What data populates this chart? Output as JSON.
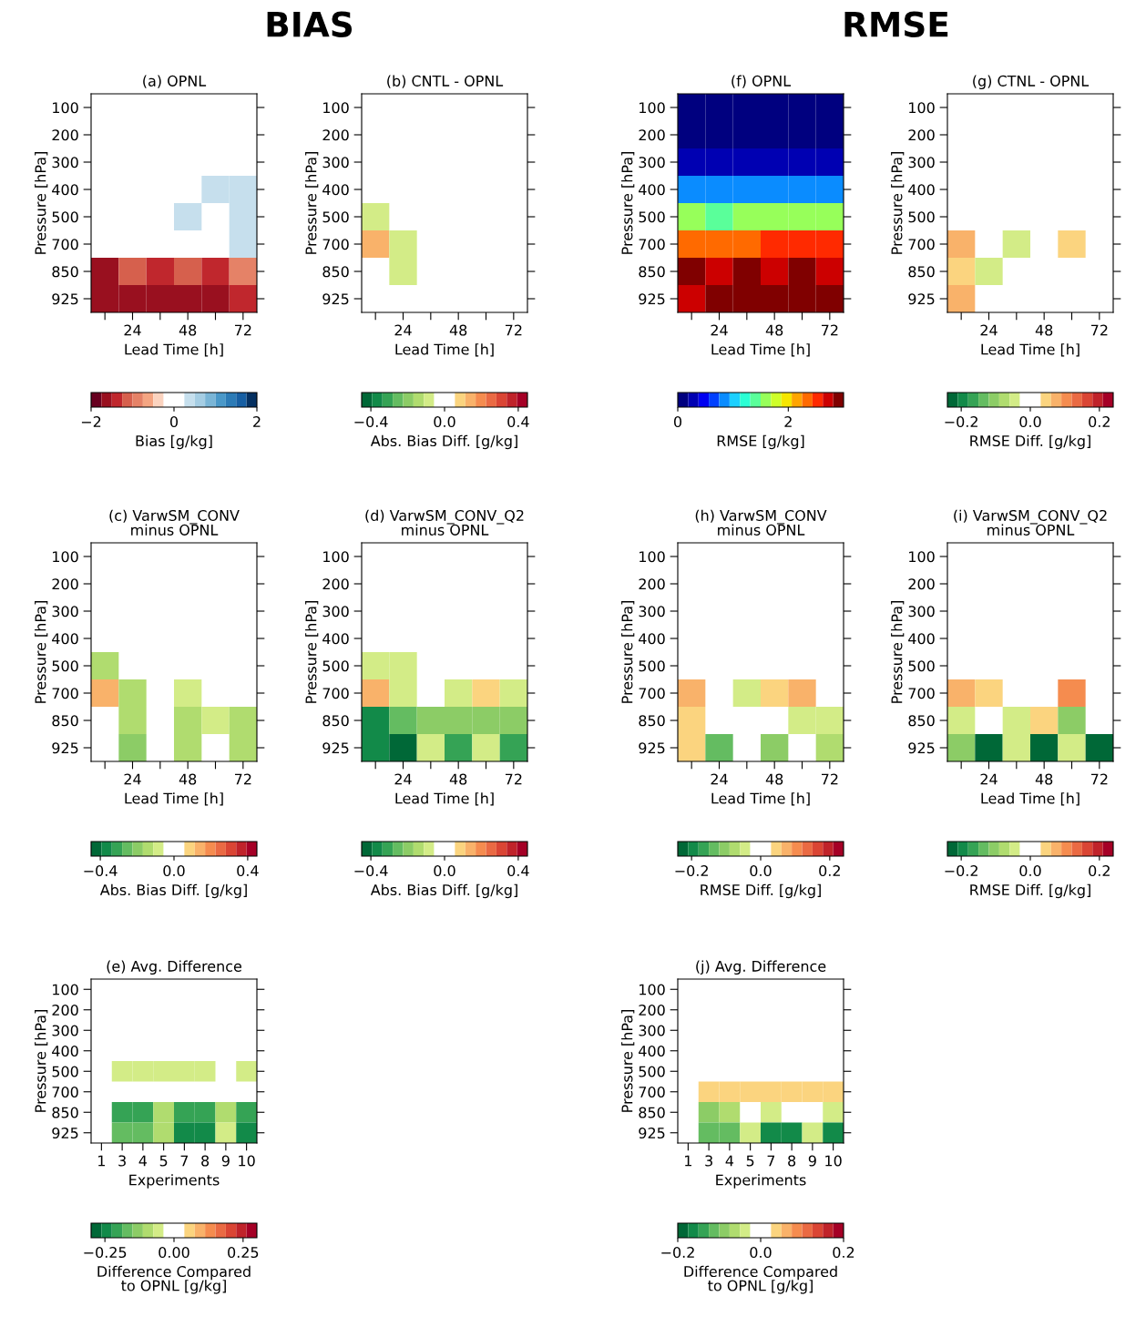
{
  "chart_data": [
    {
      "type": "heatmap",
      "title": "(a) OPNL",
      "annotations": [
        "BIAS"
      ],
      "xlabel": "Lead Time [h]",
      "ylabel": "Pressure [hPa]",
      "clabel": "Bias [g/kg]",
      "categories": [
        null,
        "24",
        null,
        "48",
        null,
        "72"
      ],
      "y_categories": [
        "100",
        "200",
        "300",
        "400",
        "500",
        "700",
        "850",
        "925"
      ],
      "clim": [
        -2,
        2
      ],
      "cticks": [
        {
          "value": -2,
          "label": "−2"
        },
        0,
        2
      ],
      "colors": [
        "#67001f",
        "#99101f",
        "#c0272d",
        "#d6604d",
        "#e58267",
        "#f4a582",
        "#fbd3bf",
        "#ffffff",
        "#ffffff",
        "#c6dfed",
        "#a5cde3",
        "#7ab5d6",
        "#4a98c8",
        "#2c7bb6",
        "#175fa3",
        "#053061"
      ],
      "cells": [
        [
          null,
          null,
          null,
          null,
          null,
          null
        ],
        [
          null,
          null,
          null,
          null,
          null,
          null
        ],
        [
          null,
          null,
          null,
          null,
          null,
          null
        ],
        [
          null,
          null,
          null,
          null,
          0.4,
          0.4
        ],
        [
          null,
          null,
          null,
          0.4,
          null,
          0.4
        ],
        [
          null,
          null,
          null,
          null,
          null,
          0.4
        ],
        [
          -1.6,
          -1.1,
          -1.4,
          -1.1,
          -1.4,
          -0.9
        ],
        [
          -1.6,
          -1.6,
          -1.6,
          -1.6,
          -1.6,
          -1.4
        ]
      ]
    },
    {
      "type": "heatmap",
      "title": "(b) CNTL - OPNL",
      "xlabel": "Lead Time [h]",
      "ylabel": "Pressure [hPa]",
      "clabel": "Abs. Bias Diff. [g/kg]",
      "categories": [
        null,
        "24",
        null,
        "48",
        null,
        "72"
      ],
      "y_categories": [
        "100",
        "200",
        "300",
        "400",
        "500",
        "700",
        "850",
        "925"
      ],
      "clim": [
        -0.45,
        0.45
      ],
      "cticks": [
        {
          "value": -0.4,
          "label": "−0.4"
        },
        {
          "value": 0,
          "label": "0.0"
        },
        0.4
      ],
      "colors": [
        "#006837",
        "#128a49",
        "#35a355",
        "#64bc61",
        "#8ccc66",
        "#b0dc6f",
        "#d3ec87",
        "#ffffff",
        "#ffffff",
        "#fbd47f",
        "#f9b26a",
        "#f58c4f",
        "#ea6a43",
        "#da4534",
        "#c0232a",
        "#a50026"
      ],
      "cells": [
        [
          null,
          null,
          null,
          null,
          null,
          null
        ],
        [
          null,
          null,
          null,
          null,
          null,
          null
        ],
        [
          null,
          null,
          null,
          null,
          null,
          null
        ],
        [
          null,
          null,
          null,
          null,
          null,
          null
        ],
        [
          -0.08,
          null,
          null,
          null,
          null,
          null
        ],
        [
          0.14,
          -0.08,
          null,
          null,
          null,
          null
        ],
        [
          null,
          -0.08,
          null,
          null,
          null,
          null
        ],
        [
          null,
          null,
          null,
          null,
          null,
          null
        ]
      ]
    },
    {
      "type": "heatmap",
      "title": "(f) OPNL",
      "annotations": [
        "RMSE"
      ],
      "xlabel": "Lead Time [h]",
      "ylabel": "Pressure [hPa]",
      "clabel": "RMSE [g/kg]",
      "categories": [
        null,
        "24",
        null,
        "48",
        null,
        "72"
      ],
      "y_categories": [
        "100",
        "200",
        "300",
        "400",
        "500",
        "700",
        "850",
        "925"
      ],
      "clim": [
        0,
        3
      ],
      "cticks": [
        0,
        2
      ],
      "colors": [
        "#00007f",
        "#0000b2",
        "#0000f1",
        "#0040ff",
        "#0a8cff",
        "#1cd0ff",
        "#2bffd4",
        "#5aff9a",
        "#97ff5a",
        "#ceff29",
        "#f5e600",
        "#ffa500",
        "#ff6a00",
        "#ff2a00",
        "#cc0000",
        "#800000"
      ],
      "cells": [
        [
          0.09,
          0.09,
          0.09,
          0.09,
          0.09,
          0.09
        ],
        [
          0.09,
          0.09,
          0.09,
          0.09,
          0.09,
          0.09
        ],
        [
          0.28,
          0.28,
          0.28,
          0.28,
          0.28,
          0.28
        ],
        [
          0.84,
          0.84,
          0.84,
          0.84,
          0.84,
          0.84
        ],
        [
          1.59,
          1.41,
          1.59,
          1.59,
          1.59,
          1.59
        ],
        [
          2.34,
          2.34,
          2.34,
          2.53,
          2.53,
          2.53
        ],
        [
          2.91,
          2.72,
          2.91,
          2.72,
          2.91,
          2.72
        ],
        [
          2.72,
          2.91,
          2.91,
          2.91,
          2.91,
          2.91
        ]
      ]
    },
    {
      "type": "heatmap",
      "title": "(g) CTNL - OPNL",
      "xlabel": "Lead Time [h]",
      "ylabel": "Pressure [hPa]",
      "clabel": "RMSE Diff. [g/kg]",
      "categories": [
        null,
        "24",
        null,
        "48",
        null,
        "72"
      ],
      "y_categories": [
        "100",
        "200",
        "300",
        "400",
        "500",
        "700",
        "850",
        "925"
      ],
      "clim": [
        -0.24,
        0.24
      ],
      "cticks": [
        {
          "value": -0.2,
          "label": "−0.2"
        },
        {
          "value": 0,
          "label": "0.0"
        },
        0.2
      ],
      "colors": [
        "#006837",
        "#128a49",
        "#35a355",
        "#64bc61",
        "#8ccc66",
        "#b0dc6f",
        "#d3ec87",
        "#ffffff",
        "#ffffff",
        "#fbd47f",
        "#f9b26a",
        "#f58c4f",
        "#ea6a43",
        "#da4534",
        "#c0232a",
        "#a50026"
      ],
      "cells": [
        [
          null,
          null,
          null,
          null,
          null,
          null
        ],
        [
          null,
          null,
          null,
          null,
          null,
          null
        ],
        [
          null,
          null,
          null,
          null,
          null,
          null
        ],
        [
          null,
          null,
          null,
          null,
          null,
          null
        ],
        [
          null,
          null,
          null,
          null,
          null,
          null
        ],
        [
          0.075,
          null,
          -0.045,
          null,
          0.045,
          null
        ],
        [
          0.045,
          -0.045,
          null,
          null,
          null,
          null
        ],
        [
          0.075,
          null,
          null,
          null,
          null,
          null
        ]
      ]
    },
    {
      "type": "heatmap",
      "title": "(c) VarwSM_CONV\nminus OPNL",
      "xlabel": "Lead Time [h]",
      "ylabel": "Pressure [hPa]",
      "clabel": "Abs. Bias Diff. [g/kg]",
      "categories": [
        null,
        "24",
        null,
        "48",
        null,
        "72"
      ],
      "y_categories": [
        "100",
        "200",
        "300",
        "400",
        "500",
        "700",
        "850",
        "925"
      ],
      "clim": [
        -0.45,
        0.45
      ],
      "cticks": [
        {
          "value": -0.4,
          "label": "−0.4"
        },
        {
          "value": 0,
          "label": "0.0"
        },
        0.4
      ],
      "colors": [
        "#006837",
        "#128a49",
        "#35a355",
        "#64bc61",
        "#8ccc66",
        "#b0dc6f",
        "#d3ec87",
        "#ffffff",
        "#ffffff",
        "#fbd47f",
        "#f9b26a",
        "#f58c4f",
        "#ea6a43",
        "#da4534",
        "#c0232a",
        "#a50026"
      ],
      "cells": [
        [
          null,
          null,
          null,
          null,
          null,
          null
        ],
        [
          null,
          null,
          null,
          null,
          null,
          null
        ],
        [
          null,
          null,
          null,
          null,
          null,
          null
        ],
        [
          null,
          null,
          null,
          null,
          null,
          null
        ],
        [
          -0.14,
          null,
          null,
          null,
          null,
          null
        ],
        [
          0.14,
          -0.14,
          null,
          -0.08,
          null,
          null
        ],
        [
          null,
          -0.14,
          null,
          -0.14,
          -0.08,
          -0.14
        ],
        [
          null,
          -0.2,
          null,
          -0.14,
          null,
          -0.14
        ]
      ]
    },
    {
      "type": "heatmap",
      "title": "(d) VarwSM_CONV_Q2\nminus OPNL",
      "xlabel": "Lead Time [h]",
      "ylabel": "Pressure [hPa]",
      "clabel": "Abs. Bias Diff. [g/kg]",
      "categories": [
        null,
        "24",
        null,
        "48",
        null,
        "72"
      ],
      "y_categories": [
        "100",
        "200",
        "300",
        "400",
        "500",
        "700",
        "850",
        "925"
      ],
      "clim": [
        -0.45,
        0.45
      ],
      "cticks": [
        {
          "value": -0.4,
          "label": "−0.4"
        },
        {
          "value": 0,
          "label": "0.0"
        },
        0.4
      ],
      "colors": [
        "#006837",
        "#128a49",
        "#35a355",
        "#64bc61",
        "#8ccc66",
        "#b0dc6f",
        "#d3ec87",
        "#ffffff",
        "#ffffff",
        "#fbd47f",
        "#f9b26a",
        "#f58c4f",
        "#ea6a43",
        "#da4534",
        "#c0232a",
        "#a50026"
      ],
      "cells": [
        [
          null,
          null,
          null,
          null,
          null,
          null
        ],
        [
          null,
          null,
          null,
          null,
          null,
          null
        ],
        [
          null,
          null,
          null,
          null,
          null,
          null
        ],
        [
          null,
          null,
          null,
          null,
          null,
          null
        ],
        [
          -0.08,
          -0.08,
          null,
          null,
          null,
          null
        ],
        [
          0.14,
          -0.08,
          null,
          -0.08,
          0.08,
          -0.08
        ],
        [
          -0.37,
          -0.25,
          -0.2,
          -0.2,
          -0.2,
          -0.2
        ],
        [
          -0.37,
          -0.42,
          -0.08,
          -0.31,
          -0.08,
          -0.31
        ]
      ]
    },
    {
      "type": "heatmap",
      "title": "(h) VarwSM_CONV\nminus OPNL",
      "xlabel": "Lead Time [h]",
      "ylabel": "Pressure [hPa]",
      "clabel": "RMSE Diff. [g/kg]",
      "categories": [
        null,
        "24",
        null,
        "48",
        null,
        "72"
      ],
      "y_categories": [
        "100",
        "200",
        "300",
        "400",
        "500",
        "700",
        "850",
        "925"
      ],
      "clim": [
        -0.24,
        0.24
      ],
      "cticks": [
        {
          "value": -0.2,
          "label": "−0.2"
        },
        {
          "value": 0,
          "label": "0.0"
        },
        0.2
      ],
      "colors": [
        "#006837",
        "#128a49",
        "#35a355",
        "#64bc61",
        "#8ccc66",
        "#b0dc6f",
        "#d3ec87",
        "#ffffff",
        "#ffffff",
        "#fbd47f",
        "#f9b26a",
        "#f58c4f",
        "#ea6a43",
        "#da4534",
        "#c0232a",
        "#a50026"
      ],
      "cells": [
        [
          null,
          null,
          null,
          null,
          null,
          null
        ],
        [
          null,
          null,
          null,
          null,
          null,
          null
        ],
        [
          null,
          null,
          null,
          null,
          null,
          null
        ],
        [
          null,
          null,
          null,
          null,
          null,
          null
        ],
        [
          null,
          null,
          null,
          null,
          null,
          null
        ],
        [
          0.075,
          null,
          -0.045,
          0.045,
          0.075,
          null
        ],
        [
          0.045,
          null,
          null,
          null,
          -0.045,
          -0.045
        ],
        [
          0.045,
          -0.135,
          null,
          -0.105,
          null,
          -0.075
        ]
      ]
    },
    {
      "type": "heatmap",
      "title": "(i) VarwSM_CONV_Q2\nminus OPNL",
      "xlabel": "Lead Time [h]",
      "ylabel": "Pressure [hPa]",
      "clabel": "RMSE Diff. [g/kg]",
      "categories": [
        null,
        "24",
        null,
        "48",
        null,
        "72"
      ],
      "y_categories": [
        "100",
        "200",
        "300",
        "400",
        "500",
        "700",
        "850",
        "925"
      ],
      "clim": [
        -0.24,
        0.24
      ],
      "cticks": [
        {
          "value": -0.2,
          "label": "−0.2"
        },
        {
          "value": 0,
          "label": "0.0"
        },
        0.2
      ],
      "colors": [
        "#006837",
        "#128a49",
        "#35a355",
        "#64bc61",
        "#8ccc66",
        "#b0dc6f",
        "#d3ec87",
        "#ffffff",
        "#ffffff",
        "#fbd47f",
        "#f9b26a",
        "#f58c4f",
        "#ea6a43",
        "#da4534",
        "#c0232a",
        "#a50026"
      ],
      "cells": [
        [
          null,
          null,
          null,
          null,
          null,
          null
        ],
        [
          null,
          null,
          null,
          null,
          null,
          null
        ],
        [
          null,
          null,
          null,
          null,
          null,
          null
        ],
        [
          null,
          null,
          null,
          null,
          null,
          null
        ],
        [
          null,
          null,
          null,
          null,
          null,
          null
        ],
        [
          0.075,
          0.045,
          null,
          null,
          0.105,
          null
        ],
        [
          -0.045,
          null,
          -0.045,
          0.045,
          -0.105,
          null
        ],
        [
          -0.105,
          -0.225,
          -0.045,
          -0.225,
          -0.045,
          -0.225
        ]
      ]
    },
    {
      "type": "heatmap",
      "title": "(e) Avg. Difference",
      "xlabel": "Experiments",
      "ylabel": "Pressure [hPa]",
      "clabel": "Difference Compared\nto OPNL [g/kg]",
      "categories": [
        "1",
        "3",
        "4",
        "5",
        "7",
        "8",
        "9",
        "10"
      ],
      "y_categories": [
        "100",
        "200",
        "300",
        "400",
        "500",
        "700",
        "850",
        "925"
      ],
      "clim": [
        -0.3,
        0.3
      ],
      "cticks": [
        {
          "value": -0.25,
          "label": "−0.25"
        },
        {
          "value": 0,
          "label": "0.00"
        },
        0.25
      ],
      "colors": [
        "#006837",
        "#128a49",
        "#35a355",
        "#64bc61",
        "#8ccc66",
        "#b0dc6f",
        "#d3ec87",
        "#ffffff",
        "#ffffff",
        "#fbd47f",
        "#f9b26a",
        "#f58c4f",
        "#ea6a43",
        "#da4534",
        "#c0232a",
        "#a50026"
      ],
      "cells": [
        [
          null,
          null,
          null,
          null,
          null,
          null,
          null,
          null
        ],
        [
          null,
          null,
          null,
          null,
          null,
          null,
          null,
          null
        ],
        [
          null,
          null,
          null,
          null,
          null,
          null,
          null,
          null
        ],
        [
          null,
          null,
          null,
          null,
          null,
          null,
          null,
          null
        ],
        [
          null,
          -0.06,
          -0.06,
          -0.06,
          -0.06,
          -0.06,
          null,
          -0.06
        ],
        [
          null,
          null,
          null,
          null,
          null,
          null,
          null,
          null
        ],
        [
          null,
          -0.21,
          -0.21,
          -0.09,
          -0.21,
          -0.21,
          -0.09,
          -0.21
        ],
        [
          null,
          -0.17,
          -0.17,
          -0.09,
          -0.24,
          -0.24,
          -0.06,
          -0.24
        ]
      ]
    },
    {
      "type": "heatmap",
      "title": "(j) Avg. Difference",
      "xlabel": "Experiments",
      "ylabel": "Pressure [hPa]",
      "clabel": "Difference Compared\nto OPNL [g/kg]",
      "categories": [
        "1",
        "3",
        "4",
        "5",
        "7",
        "8",
        "9",
        "10"
      ],
      "y_categories": [
        "100",
        "200",
        "300",
        "400",
        "500",
        "700",
        "850",
        "925"
      ],
      "clim": [
        -0.2,
        0.2
      ],
      "cticks": [
        {
          "value": -0.2,
          "label": "−0.2"
        },
        {
          "value": 0,
          "label": "0.0"
        },
        0.2
      ],
      "colors": [
        "#006837",
        "#128a49",
        "#35a355",
        "#64bc61",
        "#8ccc66",
        "#b0dc6f",
        "#d3ec87",
        "#ffffff",
        "#ffffff",
        "#fbd47f",
        "#f9b26a",
        "#f58c4f",
        "#ea6a43",
        "#da4534",
        "#c0232a",
        "#a50026"
      ],
      "cells": [
        [
          null,
          null,
          null,
          null,
          null,
          null,
          null,
          null
        ],
        [
          null,
          null,
          null,
          null,
          null,
          null,
          null,
          null
        ],
        [
          null,
          null,
          null,
          null,
          null,
          null,
          null,
          null
        ],
        [
          null,
          null,
          null,
          null,
          null,
          null,
          null,
          null
        ],
        [
          null,
          null,
          null,
          null,
          null,
          null,
          null,
          null
        ],
        [
          null,
          0.04,
          0.04,
          0.04,
          0.04,
          0.04,
          0.04,
          0.04
        ],
        [
          null,
          -0.09,
          -0.06,
          null,
          -0.04,
          null,
          null,
          -0.04
        ],
        [
          null,
          -0.11,
          -0.11,
          -0.04,
          -0.16,
          -0.16,
          -0.04,
          -0.16
        ]
      ]
    }
  ]
}
